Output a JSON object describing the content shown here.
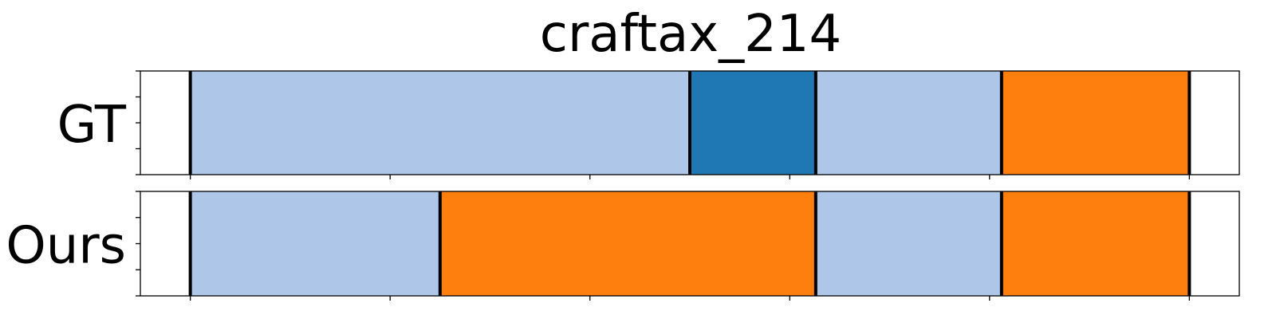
{
  "chart_data": {
    "type": "segmentation_timeline",
    "title": "craftax_214",
    "x_range": [
      -25,
      525
    ],
    "x_ticks": [
      0,
      100,
      200,
      300,
      400,
      500
    ],
    "tick_labels_visible": false,
    "grid": false,
    "colors": {
      "light_blue": "#aec7e8",
      "dark_blue": "#1f77b4",
      "orange": "#ff7f0e",
      "boundary": "#000000"
    },
    "rows": [
      {
        "label": "GT",
        "segments": [
          {
            "start": 0,
            "end": 250,
            "color": "light_blue"
          },
          {
            "start": 250,
            "end": 313,
            "color": "dark_blue"
          },
          {
            "start": 313,
            "end": 406,
            "color": "light_blue"
          },
          {
            "start": 406,
            "end": 500,
            "color": "orange"
          }
        ]
      },
      {
        "label": "Ours",
        "segments": [
          {
            "start": 0,
            "end": 125,
            "color": "light_blue"
          },
          {
            "start": 125,
            "end": 313,
            "color": "orange"
          },
          {
            "start": 313,
            "end": 406,
            "color": "light_blue"
          },
          {
            "start": 406,
            "end": 500,
            "color": "orange"
          }
        ]
      }
    ]
  }
}
